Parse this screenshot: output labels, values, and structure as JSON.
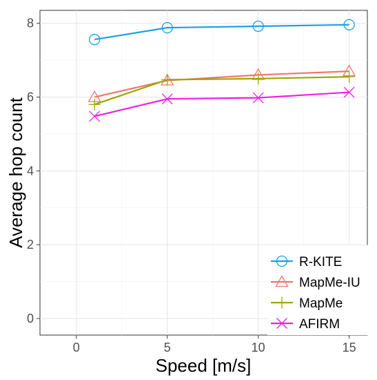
{
  "chart_data": {
    "type": "line",
    "title": "",
    "xlabel": "Speed [m/s]",
    "ylabel": "Average hop count",
    "xlim": [
      -2,
      16
    ],
    "ylim": [
      -0.45,
      8.35
    ],
    "x_ticks": [
      0,
      5,
      10,
      15
    ],
    "y_ticks": [
      0,
      2,
      4,
      6,
      8
    ],
    "grid": true,
    "legend_position": "bottom-right",
    "x": [
      1,
      5,
      10,
      15
    ],
    "series": [
      {
        "name": "R-KITE",
        "values": [
          7.56,
          7.88,
          7.92,
          7.96
        ],
        "color": "#1aa0e6",
        "marker": "circle"
      },
      {
        "name": "MapMe-IU",
        "values": [
          6.0,
          6.45,
          6.6,
          6.7
        ],
        "color": "#f0756e",
        "marker": "triangle"
      },
      {
        "name": "MapMe",
        "values": [
          5.8,
          6.47,
          6.5,
          6.55
        ],
        "color": "#9aa800",
        "marker": "plus"
      },
      {
        "name": "AFIRM",
        "values": [
          5.48,
          5.95,
          5.98,
          6.13
        ],
        "color": "#ee1ee6",
        "marker": "cross"
      }
    ]
  }
}
